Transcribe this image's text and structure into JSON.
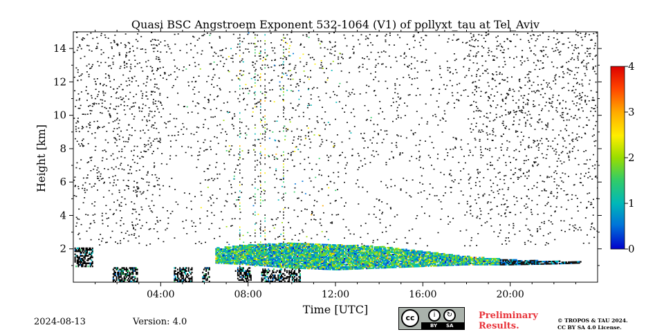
{
  "chart_data": {
    "type": "heatmap",
    "title": "Quasi BSC Angstroem Exponent 532-1064 (V1) of pollyxt_tau at Tel_Aviv",
    "xlabel": "Time [UTC]",
    "ylabel": "Height [km]",
    "xlim_hours": [
      0,
      24
    ],
    "ylim_km": [
      0,
      15
    ],
    "x_ticks": [
      "04:00",
      "08:00",
      "12:00",
      "16:00",
      "20:00"
    ],
    "x_tick_hours": [
      4,
      8,
      12,
      16,
      20
    ],
    "y_ticks": [
      "2",
      "4",
      "6",
      "8",
      "10",
      "12",
      "14"
    ],
    "y_tick_values": [
      2,
      4,
      6,
      8,
      10,
      12,
      14
    ],
    "colorbar": {
      "range": [
        0,
        4
      ],
      "ticks": [
        "0",
        "1",
        "2",
        "3",
        "4"
      ],
      "colormap": [
        "#0000cc",
        "#0073d9",
        "#00b8b8",
        "#33cc66",
        "#99dd00",
        "#ffee00",
        "#ffaa00",
        "#ff4400",
        "#dd0000"
      ]
    },
    "aerosol_layer": [
      {
        "t": 6.5,
        "top": 2.1,
        "bottom": 1.2
      },
      {
        "t": 8.0,
        "top": 2.3,
        "bottom": 1.1
      },
      {
        "t": 10.0,
        "top": 2.4,
        "bottom": 0.9
      },
      {
        "t": 12.0,
        "top": 2.3,
        "bottom": 0.8
      },
      {
        "t": 14.0,
        "top": 2.2,
        "bottom": 0.9
      },
      {
        "t": 16.0,
        "top": 1.9,
        "bottom": 1.0
      },
      {
        "t": 18.0,
        "top": 1.6,
        "bottom": 1.1
      },
      {
        "t": 20.0,
        "top": 1.4,
        "bottom": 1.1
      },
      {
        "t": 22.0,
        "top": 1.3,
        "bottom": 1.15
      },
      {
        "t": 23.2,
        "top": 1.3,
        "bottom": 1.2
      }
    ],
    "grid": false
  },
  "footer": {
    "date": "2024-08-13",
    "version": "Version: 4.0",
    "preliminary_line1": "Preliminary",
    "preliminary_line2": "Results.",
    "license_line1": "© TROPOS & TAU 2024.",
    "license_line2": "CC BY SA 4.0 License.",
    "cc_text": "cc",
    "by_text": "BY",
    "sa_text": "SA"
  }
}
